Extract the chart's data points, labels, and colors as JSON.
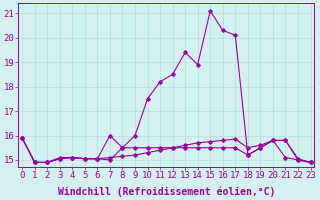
{
  "line1_x": [
    0,
    1,
    2,
    3,
    4,
    5,
    6,
    7,
    8,
    9,
    10,
    11,
    12,
    13,
    14,
    15,
    16,
    17,
    18,
    19,
    20,
    21,
    22,
    23
  ],
  "line1_y": [
    15.9,
    14.9,
    14.9,
    15.1,
    15.1,
    15.05,
    15.05,
    15.1,
    15.15,
    15.2,
    15.3,
    15.4,
    15.5,
    15.6,
    15.7,
    15.75,
    15.8,
    15.85,
    15.5,
    15.6,
    15.8,
    15.8,
    15.05,
    14.9
  ],
  "line2_x": [
    0,
    1,
    2,
    3,
    4,
    5,
    6,
    7,
    8,
    9,
    10,
    11,
    12,
    13,
    14,
    15,
    16,
    17,
    18,
    19,
    20,
    21,
    22,
    23
  ],
  "line2_y": [
    15.9,
    14.9,
    14.9,
    15.05,
    15.1,
    15.05,
    15.05,
    15.0,
    15.5,
    16.0,
    17.5,
    18.2,
    18.5,
    19.4,
    18.9,
    21.1,
    20.3,
    20.1,
    15.2,
    15.5,
    15.8,
    15.8,
    15.0,
    14.9
  ],
  "line3_x": [
    0,
    1,
    2,
    3,
    4,
    5,
    6,
    7,
    8,
    9,
    10,
    11,
    12,
    13,
    14,
    15,
    16,
    17,
    18,
    19,
    20,
    21,
    22,
    23
  ],
  "line3_y": [
    15.9,
    14.9,
    14.9,
    15.05,
    15.1,
    15.05,
    15.05,
    16.0,
    15.5,
    15.5,
    15.5,
    15.5,
    15.5,
    15.5,
    15.5,
    15.5,
    15.5,
    15.5,
    15.2,
    15.5,
    15.8,
    15.1,
    15.0,
    14.9
  ],
  "line_color": "#990099",
  "bg_color": "#d4f0f0",
  "grid_color": "#b8e0e0",
  "xlabel": "Windchill (Refroidissement éolien,°C)",
  "ylim": [
    14.7,
    21.4
  ],
  "yticks": [
    15,
    16,
    17,
    18,
    19,
    20,
    21
  ],
  "xticks": [
    0,
    1,
    2,
    3,
    4,
    5,
    6,
    7,
    8,
    9,
    10,
    11,
    12,
    13,
    14,
    15,
    16,
    17,
    18,
    19,
    20,
    21,
    22,
    23
  ],
  "tick_fontsize": 6.5,
  "xlabel_fontsize": 7.0
}
